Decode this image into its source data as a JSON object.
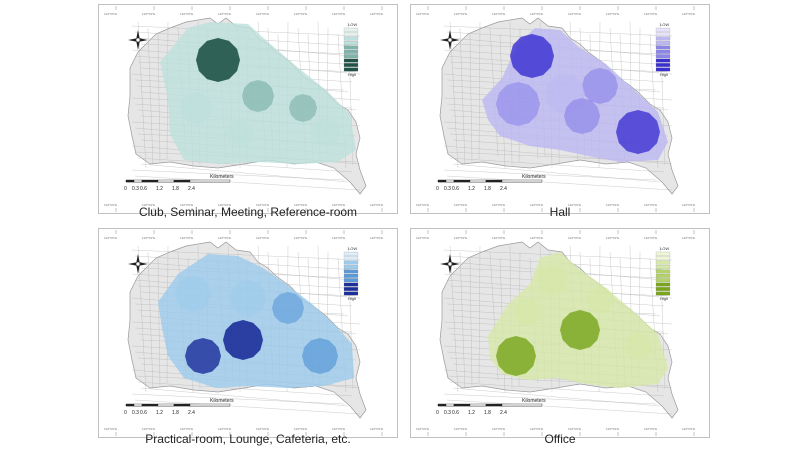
{
  "tick_label": "126°5'0\"E",
  "scale": {
    "unit": "Kilometers",
    "ticks": [
      "0",
      "0.3",
      "0.6",
      "1.2",
      "1.8",
      "2.4"
    ]
  },
  "legend": {
    "low": "LOW",
    "high": "High",
    "steps": 10
  },
  "panels": [
    {
      "caption": "Club, Seminar, Meeting, Reference-room",
      "colors": {
        "base": "#bde0dc",
        "mid": "#7fb3ab",
        "dark": "#1f5348",
        "light": "#e3f2ef"
      },
      "hotspots": [
        {
          "level": 1.0
        },
        {
          "level": 0.6
        },
        {
          "level": 0.55
        },
        {
          "level": 0.4
        },
        {
          "level": 0.3
        },
        {
          "level": 0.25
        }
      ]
    },
    {
      "caption": "Hall",
      "colors": {
        "base": "#bcb8f2",
        "mid": "#8d86ea",
        "dark": "#3a2fd0",
        "light": "#e6e3fb"
      },
      "hotspots": [
        {
          "level": 0.85
        },
        {
          "level": 0.5
        },
        {
          "level": 0.55
        },
        {
          "level": 0.45
        },
        {
          "level": 0.6
        },
        {
          "level": 0.8
        }
      ]
    },
    {
      "caption": "Practical-room, Lounge, Cafeteria, etc.",
      "colors": {
        "base": "#9ccbeb",
        "mid": "#5b9ad8",
        "dark": "#1d2f9a",
        "light": "#dcecf8"
      },
      "hotspots": [
        {
          "level": 0.4
        },
        {
          "level": 0.45
        },
        {
          "level": 0.5
        },
        {
          "level": 1.0
        },
        {
          "level": 0.85
        },
        {
          "level": 0.7
        }
      ]
    },
    {
      "caption": "Office",
      "colors": {
        "base": "#d6e8a8",
        "mid": "#b3d36a",
        "dark": "#78a51c",
        "light": "#eef6d6"
      },
      "hotspots": [
        {
          "level": 0.85
        },
        {
          "level": 0.85
        },
        {
          "level": 0.35
        },
        {
          "level": 0.3
        },
        {
          "level": 0.3
        },
        {
          "level": 0.3
        }
      ]
    }
  ]
}
